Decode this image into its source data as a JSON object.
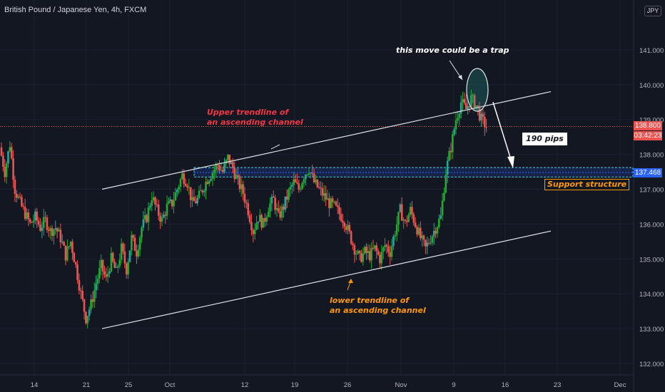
{
  "chart_data": {
    "type": "candlestick",
    "title": "British Pound / Japanese Yen, 4h, FXCM",
    "currency_badge": "JPY",
    "y_ticks": [
      "132.000",
      "133.000",
      "134.000",
      "135.000",
      "136.000",
      "137.000",
      "138.000",
      "139.000",
      "140.000",
      "141.000"
    ],
    "ylim": [
      131.7,
      142.3
    ],
    "x_ticks": [
      "14",
      "21",
      "25",
      "Oct",
      "12",
      "19",
      "26",
      "Nov",
      "9",
      "16",
      "23",
      "Dec"
    ],
    "price_last": "138.800",
    "price_timer": "03:42:23",
    "support_price": "137.468",
    "support_zone": [
      137.35,
      137.62
    ],
    "channel_upper": {
      "start": [
        "Sep 22",
        137.0
      ],
      "end": [
        "Nov 23",
        139.8
      ]
    },
    "channel_lower": {
      "start": [
        "Sep 22",
        133.0
      ],
      "end": [
        "Nov 23",
        135.8
      ]
    },
    "key_levels": {
      "current": 138.8,
      "projection_target": 137.6,
      "peak": 140.1
    },
    "price_path": [
      [
        138.2,
        137.5,
        138.3,
        137.0,
        136.6,
        136.3,
        136.0,
        136.2,
        135.9,
        136.1,
        135.8,
        135.9,
        135.6,
        135.1,
        135.5,
        134.8,
        134.0,
        133.3,
        133.7,
        134.3,
        134.8,
        134.4,
        135.0,
        134.6,
        135.3,
        134.7,
        135.6,
        135.2,
        135.9,
        136.2,
        136.8,
        136.4,
        136.1,
        136.5,
        136.6,
        137.0,
        137.4,
        137.2,
        136.6,
        136.7,
        137.0,
        137.3,
        137.5,
        137.7,
        137.5,
        137.9,
        137.6,
        137.2,
        136.9,
        136.4,
        135.8,
        136.2,
        136.0,
        136.5,
        136.7,
        136.2,
        136.5,
        136.9,
        137.2,
        137.0,
        137.4,
        137.6,
        137.2,
        137.0,
        136.8,
        136.6,
        136.5,
        136.3,
        136.1,
        135.7,
        135.3,
        135.0,
        135.2,
        135.1,
        135.3,
        135.0,
        135.4,
        135.2,
        135.8,
        136.4,
        136.0,
        136.4,
        136.0,
        135.6,
        135.3,
        135.6,
        135.9,
        136.2,
        137.5,
        138.2,
        139.0,
        139.5,
        139.3,
        139.6,
        139.4,
        139.0,
        138.8
      ]
    ],
    "annotations": [
      {
        "text": "this move could be a trap",
        "color": "#ffffff"
      },
      {
        "text": "Upper trendline of\nan ascending channel",
        "color": "#f23645"
      },
      {
        "text": "lower trendline of\nan ascending channel",
        "color": "#ff9800"
      },
      {
        "text": "190 pips",
        "color": "#131722"
      },
      {
        "text": "Support structure",
        "color": "#ff9800"
      }
    ],
    "colors": {
      "up": "#26a69a",
      "up_bright": "#22ab2e",
      "down": "#ef5350",
      "bg": "#131722",
      "support": "#2962ff"
    }
  }
}
